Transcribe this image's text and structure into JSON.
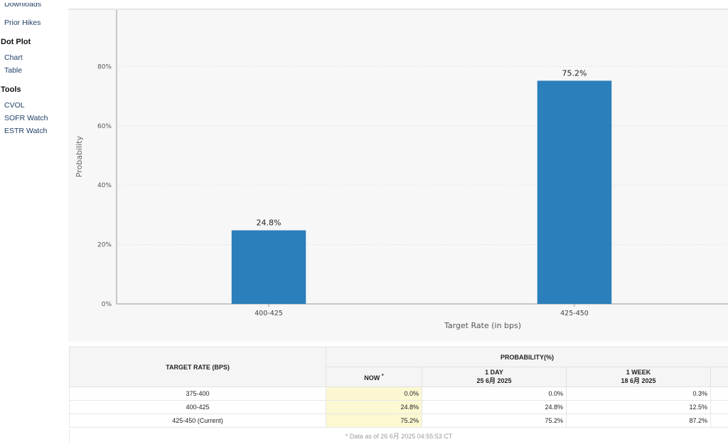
{
  "sidebar": {
    "top_partial": "Downloads",
    "prior_hikes": "Prior Hikes",
    "dot_plot_heading": "Dot Plot",
    "dot_plot_items": [
      "Chart",
      "Table"
    ],
    "tools_heading": "Tools",
    "tools_items": [
      "CVOL",
      "SOFR Watch",
      "ESTR Watch"
    ]
  },
  "chart_data": {
    "type": "bar",
    "categories": [
      "400-425",
      "425-450"
    ],
    "values": [
      24.8,
      75.2
    ],
    "data_labels": [
      "24.8%",
      "75.2%"
    ],
    "xlabel": "Target Rate (in bps)",
    "ylabel": "Probability",
    "ylim": [
      0,
      100
    ],
    "yticks": [
      0,
      20,
      40,
      60,
      80
    ],
    "ytick_labels": [
      "0%",
      "20%",
      "40%",
      "60%",
      "80%"
    ],
    "bar_color": "#2b7fba",
    "grid": true
  },
  "table": {
    "col_rate_header": "TARGET RATE (BPS)",
    "probability_header": "PROBABILITY(%)",
    "now_header": "NOW",
    "now_marker": "*",
    "day_header": "1 DAY",
    "day_date": "25 6月 2025",
    "week_header": "1 WEEK",
    "week_date": "18 6月 2025",
    "rows": [
      {
        "rate": "375-400",
        "now": "0.0%",
        "day": "0.0%",
        "week": "0.3%"
      },
      {
        "rate": "400-425",
        "now": "24.8%",
        "day": "24.8%",
        "week": "12.5%"
      },
      {
        "rate": "425-450 (Current)",
        "now": "75.2%",
        "day": "75.2%",
        "week": "87.2%"
      }
    ],
    "footnote": "* Data as of 26 6月 2025 04:55:53 CT"
  }
}
